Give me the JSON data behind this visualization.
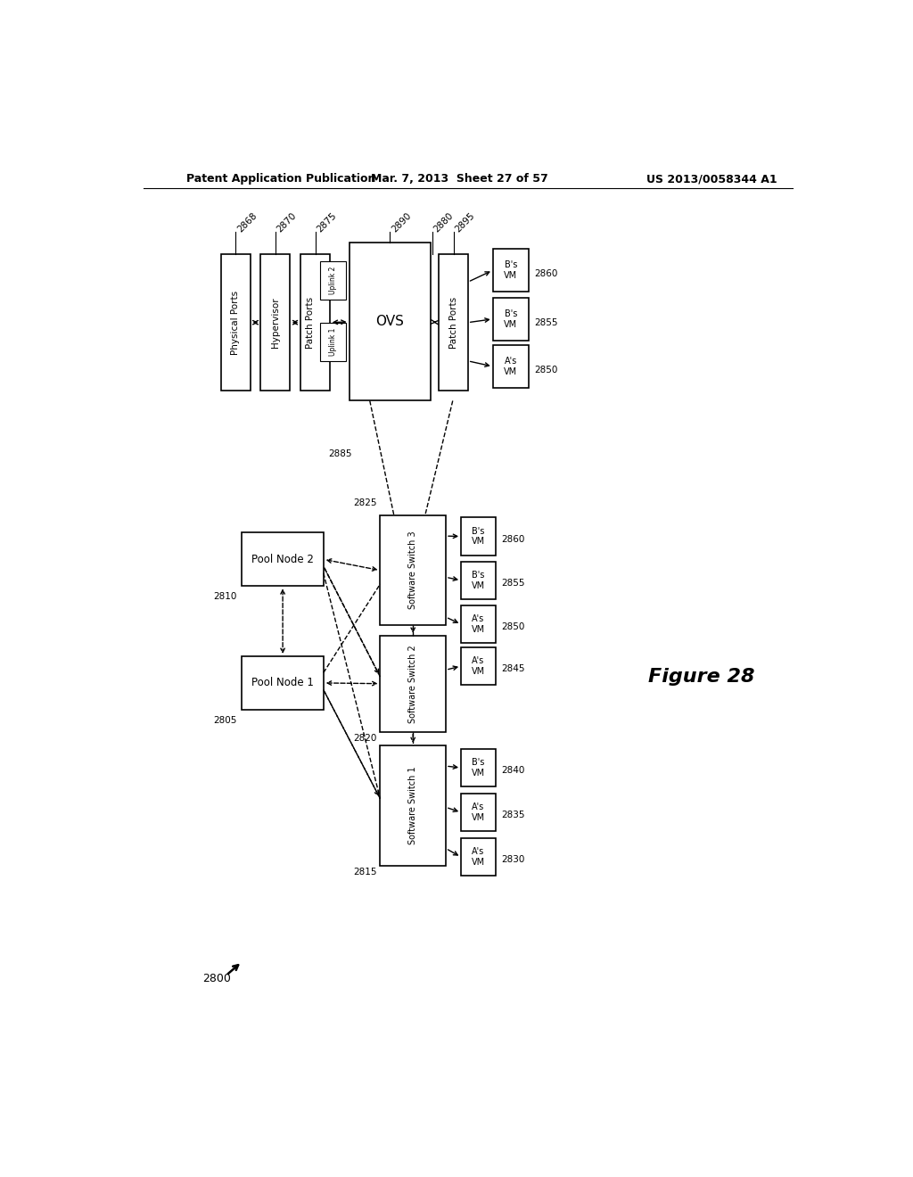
{
  "bg_color": "#ffffff",
  "header_left": "Patent Application Publication",
  "header_mid": "Mar. 7, 2013  Sheet 27 of 57",
  "header_right": "US 2013/0058344 A1",
  "figure_label": "Figure 28",
  "diagram_label": "2800"
}
